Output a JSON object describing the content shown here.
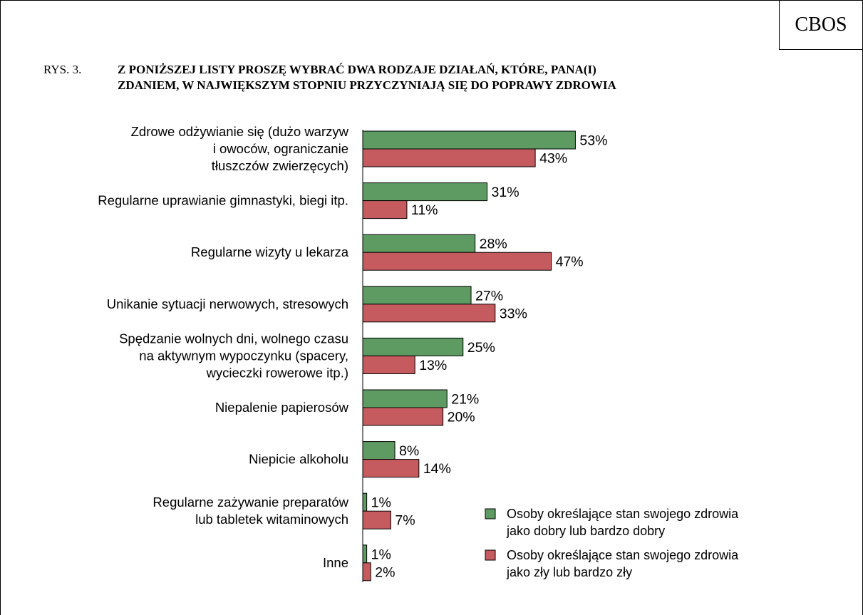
{
  "brand": "CBOS",
  "figure_number": "RYS. 3.",
  "title_lines": [
    "Z PONIŻSZEJ LISTY PROSZĘ WYBRAĆ DWA RODZAJE DZIAŁAŃ, KTÓRE, PANA(I)",
    "ZDANIEM, W NAJWIĘKSZYM STOPNIU PRZYCZYNIAJĄ SIĘ DO POPRAWY ZDROWIA"
  ],
  "chart_data": {
    "type": "bar",
    "orientation": "horizontal",
    "title": "Z PONIŻSZEJ LISTY PROSZĘ WYBRAĆ DWA RODZAJE DZIAŁAŃ, KTÓRE, PANA(I) ZDANIEM, W NAJWIĘKSZYM STOPNIU PRZYCZYNIAJĄ SIĘ DO POPRAWY ZDROWIA",
    "xlabel": "",
    "ylabel": "",
    "xlim": [
      0,
      60
    ],
    "grid": false,
    "legend_position": "bottom-right",
    "value_suffix": "%",
    "categories": [
      [
        "Zdrowe odżywianie się (dużo warzyw",
        "i owoców, ograniczanie",
        "tłuszczów zwierzęcych)"
      ],
      [
        "Regularne uprawianie gimnastyki, biegi itp."
      ],
      [
        "Regularne wizyty u lekarza"
      ],
      [
        "Unikanie sytuacji nerwowych, stresowych"
      ],
      [
        "Spędzanie wolnych dni, wolnego czasu",
        "na aktywnym wypoczynku (spacery,",
        "wycieczki rowerowe itp.)"
      ],
      [
        "Niepalenie papierosów"
      ],
      [
        "Niepicie alkoholu"
      ],
      [
        "Regularne zażywanie preparatów",
        "lub tabletek witaminowych"
      ],
      [
        "Inne"
      ]
    ],
    "series": [
      {
        "name": [
          "Osoby określające stan swojego zdrowia",
          "jako dobry lub bardzo dobry"
        ],
        "color": "#5e9b63",
        "values": [
          53,
          31,
          28,
          27,
          25,
          21,
          8,
          1,
          1
        ]
      },
      {
        "name": [
          "Osoby określające stan swojego zdrowia",
          "jako zły lub bardzo zły"
        ],
        "color": "#c65b5f",
        "values": [
          43,
          11,
          47,
          33,
          13,
          20,
          14,
          7,
          2
        ]
      }
    ]
  }
}
